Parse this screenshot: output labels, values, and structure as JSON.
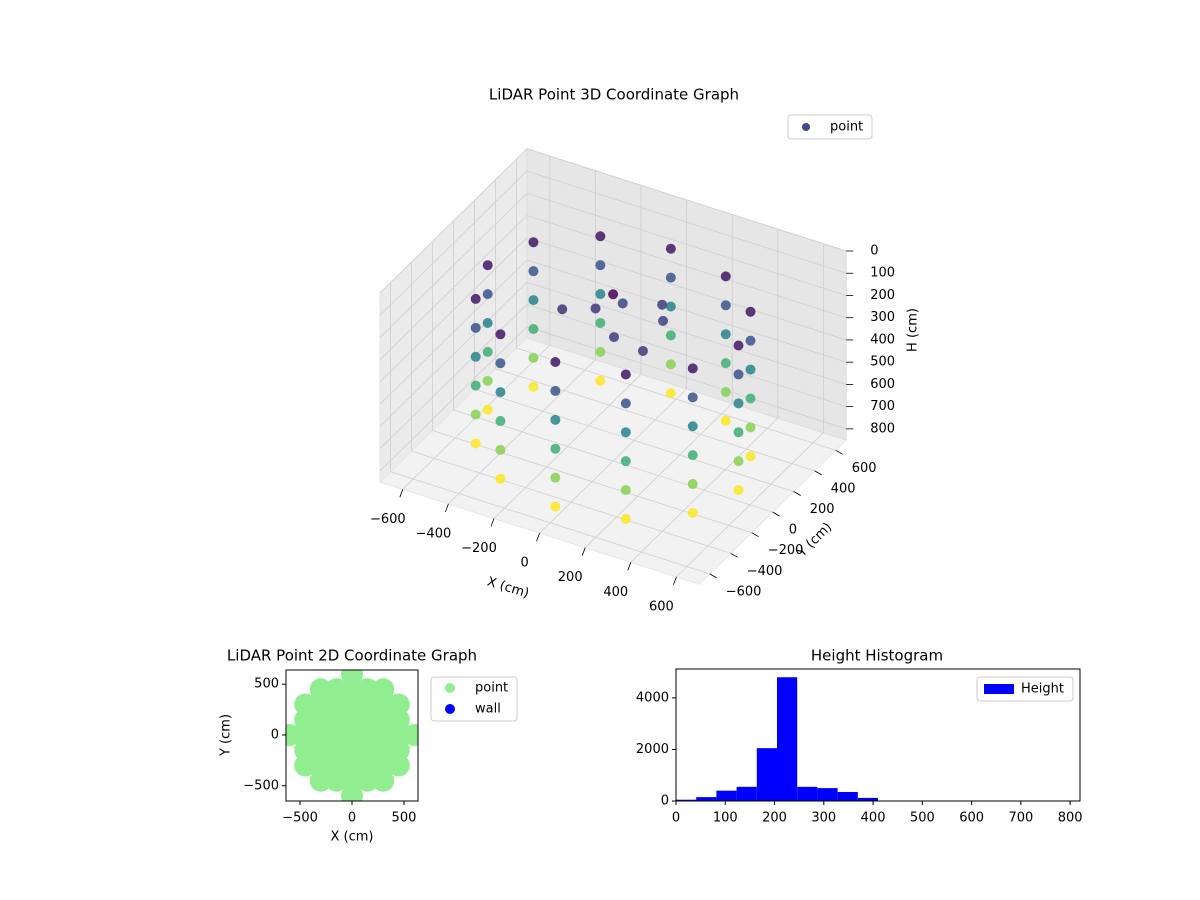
{
  "chart_data": [
    {
      "type": "scatter3d",
      "title": "LiDAR Point 3D Coordinate Graph",
      "xlabel": "X (cm)",
      "ylabel": "Y (cm)",
      "zlabel": "H (cm)",
      "xlim": [
        -700,
        700
      ],
      "ylim": [
        -700,
        700
      ],
      "zlim": [
        850,
        0
      ],
      "grid": true,
      "legend": "upper right",
      "xticks": [
        {
          "value": -600,
          "label": "−600"
        },
        {
          "value": -400,
          "label": "−400"
        },
        {
          "value": -200,
          "label": "−200"
        },
        0,
        200,
        400,
        600
      ],
      "yticks": [
        {
          "value": -600,
          "label": "−600"
        },
        {
          "value": -400,
          "label": "−400"
        },
        {
          "value": -200,
          "label": "−200"
        },
        0,
        200,
        400,
        600
      ],
      "zticks": [
        0,
        100,
        200,
        300,
        400,
        500,
        600,
        700,
        800
      ],
      "series": [
        {
          "name": "point",
          "color": "#3e4a89",
          "colormap": "viridis",
          "x": [
            550,
            550,
            550,
            550,
            550,
            550,
            476,
            476,
            476,
            476,
            476,
            476,
            275,
            275,
            275,
            275,
            275,
            275,
            0,
            0,
            0,
            0,
            0,
            0,
            -275,
            -275,
            -275,
            -275,
            -275,
            -275,
            -476,
            -476,
            -476,
            -476,
            -476,
            -476,
            -550,
            -550,
            -550,
            -550,
            -550,
            -550,
            -476,
            -476,
            -476,
            -476,
            -476,
            -476,
            -275,
            -275,
            -275,
            -275,
            -275,
            -275,
            0,
            0,
            0,
            0,
            0,
            0,
            275,
            275,
            275,
            275,
            275,
            275,
            476,
            476,
            476,
            476,
            476,
            476,
            -100,
            50,
            0,
            150,
            -200,
            100,
            -50,
            200
          ],
          "y": [
            0,
            0,
            0,
            0,
            0,
            0,
            275,
            275,
            275,
            275,
            275,
            275,
            476,
            476,
            476,
            476,
            476,
            476,
            550,
            550,
            550,
            550,
            550,
            550,
            476,
            476,
            476,
            476,
            476,
            476,
            275,
            275,
            275,
            275,
            275,
            275,
            0,
            0,
            0,
            0,
            0,
            0,
            -275,
            -275,
            -275,
            -275,
            -275,
            -275,
            -476,
            -476,
            -476,
            -476,
            -476,
            -476,
            -550,
            -550,
            -550,
            -550,
            -550,
            -550,
            -476,
            -476,
            -476,
            -476,
            -476,
            -476,
            -275,
            -275,
            -275,
            -275,
            -275,
            -275,
            50,
            -100,
            0,
            150,
            -50,
            250,
            200,
            -150
          ],
          "h": [
            150,
            280,
            410,
            540,
            670,
            800,
            150,
            280,
            410,
            540,
            670,
            800,
            150,
            280,
            410,
            540,
            670,
            800,
            150,
            280,
            410,
            540,
            670,
            800,
            150,
            280,
            410,
            540,
            670,
            800,
            150,
            280,
            410,
            540,
            670,
            800,
            150,
            280,
            410,
            540,
            670,
            800,
            150,
            280,
            410,
            540,
            670,
            800,
            150,
            280,
            410,
            540,
            670,
            800,
            150,
            280,
            410,
            540,
            670,
            800,
            150,
            280,
            410,
            540,
            670,
            800,
            150,
            280,
            410,
            540,
            670,
            800,
            220,
            230,
            100,
            240,
            210,
            230,
            250,
            220
          ]
        }
      ]
    },
    {
      "type": "scatter",
      "title": "LiDAR Point 2D Coordinate Graph",
      "xlabel": "X (cm)",
      "ylabel": "Y (cm)",
      "xlim": [
        -635,
        635
      ],
      "ylim": [
        -650,
        640
      ],
      "legend": "outside right",
      "xticks": [
        {
          "value": -500,
          "label": "−500"
        },
        0,
        500
      ],
      "yticks": [
        {
          "value": -500,
          "label": "−500"
        },
        0,
        500
      ],
      "series": [
        {
          "name": "point",
          "color": "#90ee90",
          "x": [
            0,
            -300,
            -150,
            0,
            150,
            300,
            -450,
            -300,
            -150,
            0,
            150,
            300,
            450,
            -450,
            -300,
            -150,
            0,
            150,
            300,
            450,
            -600,
            -450,
            -300,
            -150,
            0,
            150,
            300,
            450,
            600,
            -450,
            -300,
            -150,
            0,
            150,
            300,
            450,
            -450,
            -300,
            -150,
            0,
            150,
            300,
            450,
            -300,
            -150,
            0,
            150,
            300,
            0
          ],
          "y": [
            600,
            450,
            450,
            450,
            450,
            450,
            300,
            300,
            300,
            300,
            300,
            300,
            300,
            150,
            150,
            150,
            150,
            150,
            150,
            150,
            0,
            0,
            0,
            0,
            0,
            0,
            0,
            0,
            0,
            -150,
            -150,
            -150,
            -150,
            -150,
            -150,
            -150,
            -300,
            -300,
            -300,
            -300,
            -300,
            -300,
            -300,
            -450,
            -450,
            -450,
            -450,
            -450,
            -600
          ]
        },
        {
          "name": "wall",
          "color": "#0000ff",
          "x": [],
          "y": []
        }
      ]
    },
    {
      "type": "histogram",
      "title": "Height Histogram",
      "name": "Height",
      "color": "#0000ff",
      "legend": "upper right",
      "bins": [
        0,
        41,
        82,
        123,
        164,
        205,
        246,
        287,
        328,
        369,
        410,
        451,
        492,
        533,
        574,
        615,
        656,
        697,
        738,
        779,
        820
      ],
      "counts": [
        50,
        150,
        400,
        550,
        2050,
        4800,
        550,
        500,
        350,
        120,
        10,
        5,
        5,
        5,
        5,
        5,
        5,
        5,
        5,
        5
      ],
      "xlim": [
        0,
        820
      ],
      "ylim": [
        0,
        5120
      ],
      "xticks": [
        0,
        100,
        200,
        300,
        400,
        500,
        600,
        700,
        800
      ],
      "yticks": [
        0,
        2000,
        4000
      ]
    }
  ]
}
